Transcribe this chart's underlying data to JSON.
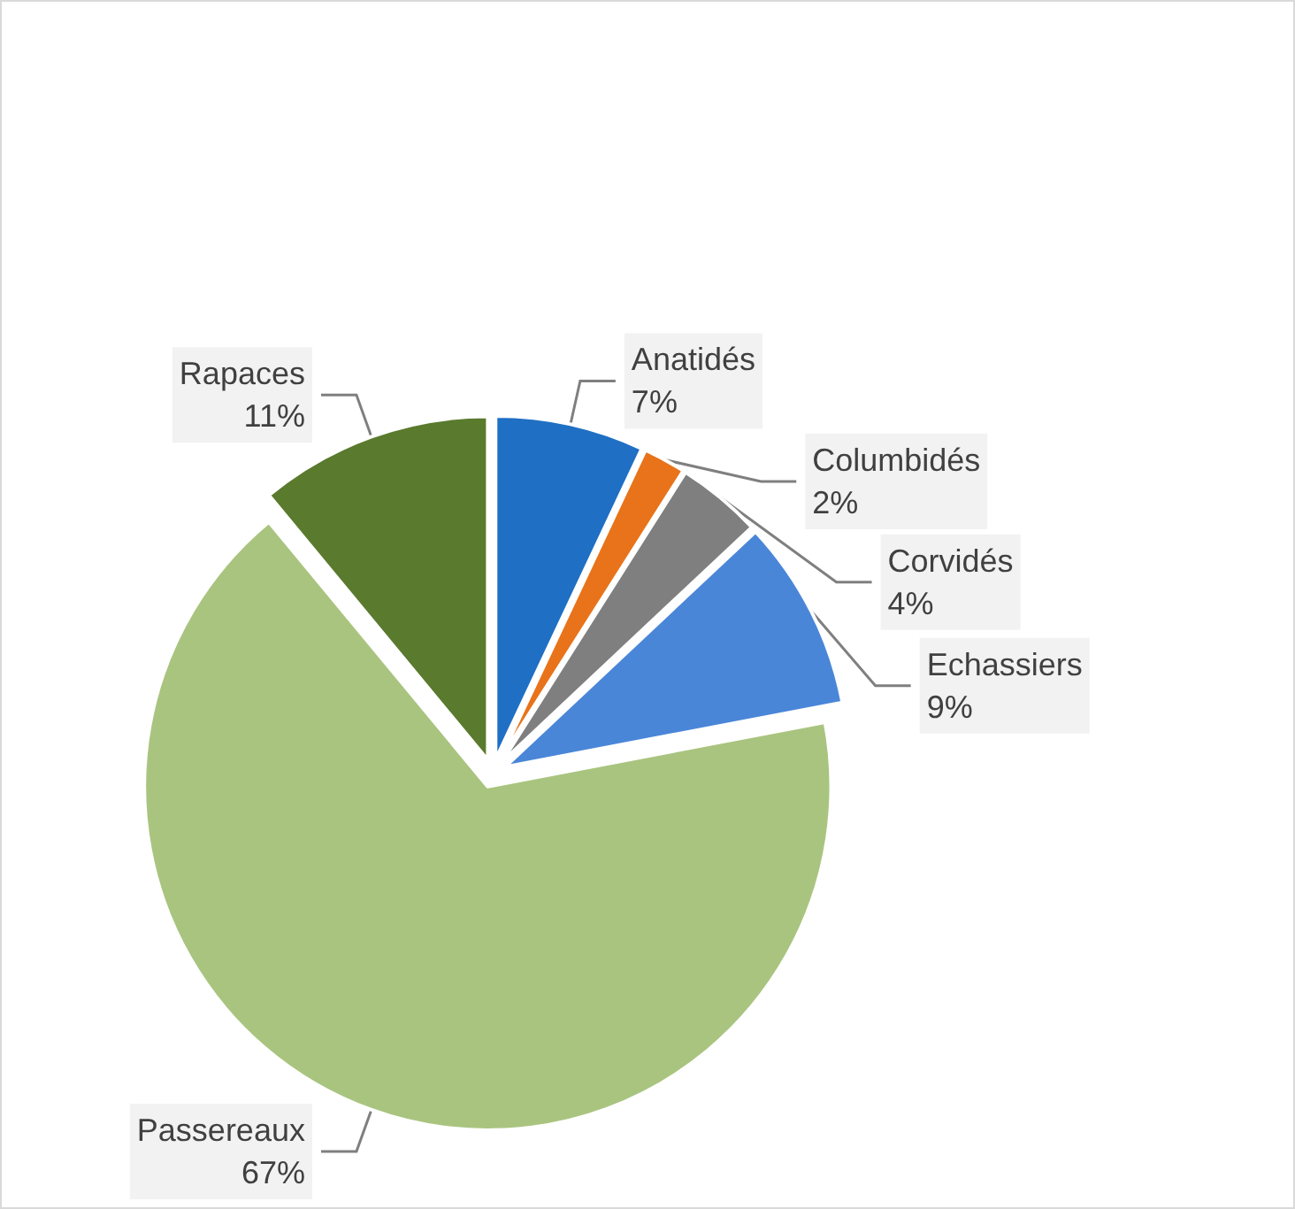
{
  "chart_data": {
    "type": "pie",
    "categories": [
      "Anatidés",
      "Columbidés",
      "Corvidés",
      "Echassiers",
      "Passereaux",
      "Rapaces"
    ],
    "values": [
      7,
      2,
      4,
      9,
      67,
      11
    ],
    "value_labels": [
      "7%",
      "2%",
      "4%",
      "9%",
      "67%",
      "11%"
    ],
    "colors": [
      "#1f6fc4",
      "#e8731a",
      "#7f7f7f",
      "#4a86d8",
      "#a9c47f",
      "#5a7a2e"
    ],
    "legend": false
  }
}
